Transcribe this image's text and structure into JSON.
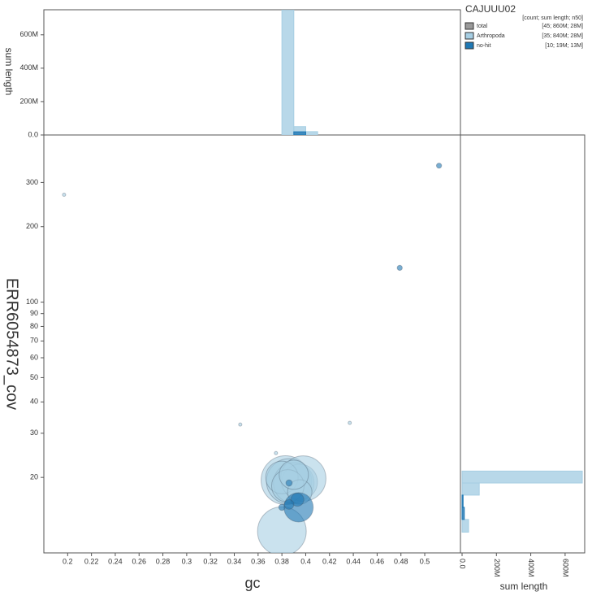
{
  "chart_data": [
    {
      "type": "scatter",
      "x_label": "gc",
      "y_label": "ERR6054873_cov",
      "xlim": [
        0.18,
        0.53
      ],
      "ylim": [
        10,
        464
      ],
      "y_log": true,
      "xticks": [
        0.2,
        0.22,
        0.24,
        0.26,
        0.28,
        0.3,
        0.32,
        0.34,
        0.36,
        0.38,
        0.4,
        0.42,
        0.44,
        0.46,
        0.48,
        0.5
      ],
      "yticks": [
        20,
        30,
        40,
        50,
        60,
        70,
        80,
        90,
        100,
        200,
        300
      ],
      "series": [
        {
          "name": "Arthropoda",
          "color": "#a6cee3",
          "x": [
            0.197,
            0.345,
            0.437,
            0.375,
            0.38,
            0.383,
            0.386,
            0.39,
            0.395,
            0.398,
            0.38,
            0.385,
            0.395,
            0.39
          ],
          "values": [
            268,
            32.5,
            33,
            25,
            12.2,
            19.5,
            19.3,
            19,
            19.2,
            19.8,
            20,
            18.5,
            17.5,
            20.5
          ],
          "sizes": [
            0.16,
            0.16,
            0.16,
            0.16,
            36,
            36,
            31,
            25,
            19,
            31,
            16,
            16,
            9,
            13
          ]
        },
        {
          "name": "no-hit",
          "color": "#1f78b4",
          "x": [
            0.479,
            0.512,
            0.394,
            0.393,
            0.386,
            0.38,
            0.386
          ],
          "values": [
            137,
            350,
            15.2,
            16.3,
            15.6,
            15.2,
            19
          ],
          "sizes": [
            0.4,
            0.4,
            13,
            2.6,
            1.4,
            0.6,
            0.6
          ]
        }
      ],
      "legend": {
        "title": "CAJUUU02",
        "header": "[count; sum length; n50]",
        "total": {
          "name": "total",
          "color": "#999999",
          "stats": "[45; 860M; 28M]"
        },
        "stats": [
          "[35; 840M; 28M]",
          "[10; 19M; 13M]"
        ]
      }
    },
    {
      "type": "histogram",
      "y_label": "sum length",
      "xlim": [
        0.18,
        0.53
      ],
      "ylim": [
        0,
        750
      ],
      "yticks": [
        {
          "value": 0,
          "label": "0.0"
        },
        {
          "value": 200,
          "label": "200M"
        },
        {
          "value": 400,
          "label": "400M"
        },
        {
          "value": 600,
          "label": "600M"
        }
      ],
      "bins": [
        0.38,
        0.39,
        0.4,
        0.41
      ],
      "series": [
        {
          "name": "Arthropoda",
          "color": "#a6cee3",
          "values": [
            770,
            50,
            20
          ]
        },
        {
          "name": "no-hit",
          "color": "#1f78b4",
          "values": [
            0,
            19,
            0
          ]
        }
      ]
    },
    {
      "type": "histogram",
      "orientation": "horizontal",
      "x_label": "sum length",
      "xlim": [
        0,
        714
      ],
      "ylim": [
        10,
        464
      ],
      "y_log": true,
      "xticks": [
        {
          "value": 0,
          "label": "0.0"
        },
        {
          "value": 200,
          "label": "200M"
        },
        {
          "value": 400,
          "label": "400M"
        },
        {
          "value": 600,
          "label": "600M"
        }
      ],
      "bins": [
        12.1,
        13.6,
        15.2,
        17.0,
        19.0,
        21.2
      ],
      "series": [
        {
          "name": "Arthropoda",
          "color": "#a6cee3",
          "values": [
            38,
            0,
            0,
            100,
            700
          ]
        },
        {
          "name": "no-hit",
          "color": "#1f78b4",
          "values": [
            0,
            13,
            6,
            0,
            0
          ]
        }
      ]
    }
  ]
}
